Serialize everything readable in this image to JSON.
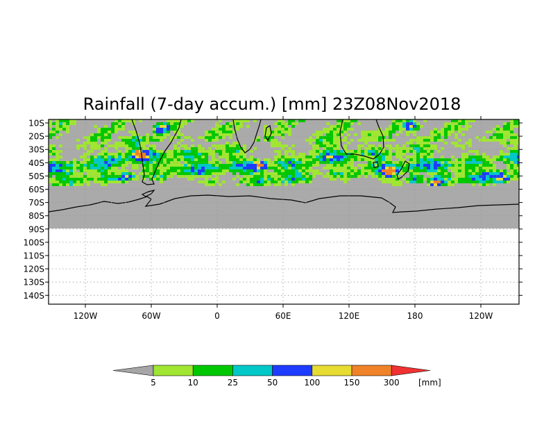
{
  "title": "Rainfall (7-day accum.) [mm] 23Z08Nov2018",
  "lat_labels": [
    "10S",
    "20S",
    "30S",
    "40S",
    "50S",
    "60S",
    "70S",
    "80S",
    "90S",
    "100S",
    "110S",
    "120S",
    "130S",
    "140S"
  ],
  "lon_labels": [
    "120W",
    "60W",
    "0",
    "60E",
    "120E",
    "180",
    "120W"
  ],
  "colorbar": {
    "thresholds": [
      "5",
      "10",
      "25",
      "50",
      "100",
      "150",
      "300"
    ],
    "unit": "[mm]",
    "colors": {
      "below": "#a6a6a6",
      "bins": [
        "#a0e632",
        "#00c800",
        "#00c8c8",
        "#1e3cff",
        "#e6dc32",
        "#f08228"
      ],
      "above": "#f03232"
    }
  },
  "map_colors": {
    "no_rain": "#aaaaaa",
    "background": "#ffffff",
    "coastline": "#000000"
  }
}
